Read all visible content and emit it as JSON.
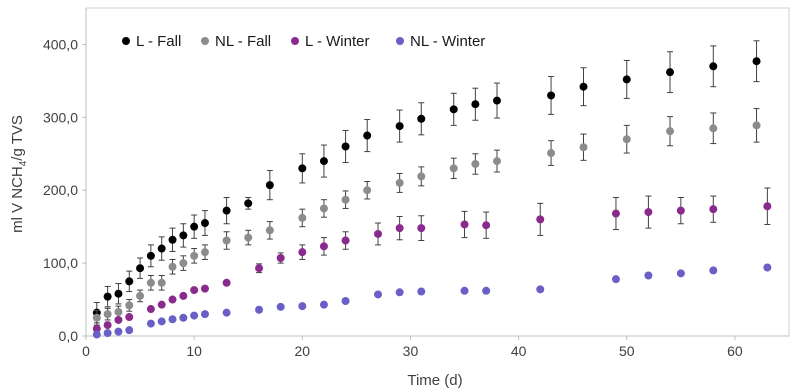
{
  "chart_data": {
    "type": "scatter",
    "title": "",
    "xlabel": "Time (d)",
    "ylabel_parts": [
      "ml V NCH",
      "4",
      "/g TVS"
    ],
    "xlim": [
      0,
      65
    ],
    "ylim": [
      0,
      450
    ],
    "x_ticks": [
      0,
      10,
      20,
      30,
      40,
      50,
      60
    ],
    "y_ticks": [
      0,
      100,
      200,
      300,
      400
    ],
    "y_tick_labels": [
      "0,0",
      "100,0",
      "200,0",
      "300,0",
      "400,0"
    ],
    "grid": false,
    "legend_position": "top-left",
    "series": [
      {
        "name": "L - Fall",
        "color": "#000000",
        "points": [
          {
            "x": 1,
            "y": 32,
            "err": 14
          },
          {
            "x": 2,
            "y": 54,
            "err": 14
          },
          {
            "x": 3,
            "y": 58,
            "err": 14
          },
          {
            "x": 4,
            "y": 75,
            "err": 14
          },
          {
            "x": 5,
            "y": 93,
            "err": 14
          },
          {
            "x": 6,
            "y": 110,
            "err": 15
          },
          {
            "x": 7,
            "y": 120,
            "err": 16
          },
          {
            "x": 8,
            "y": 132,
            "err": 16
          },
          {
            "x": 9,
            "y": 138,
            "err": 16
          },
          {
            "x": 10,
            "y": 150,
            "err": 16
          },
          {
            "x": 11,
            "y": 155,
            "err": 17
          },
          {
            "x": 13,
            "y": 172,
            "err": 18
          },
          {
            "x": 15,
            "y": 182,
            "err": 8
          },
          {
            "x": 17,
            "y": 207,
            "err": 20
          },
          {
            "x": 20,
            "y": 230,
            "err": 20
          },
          {
            "x": 22,
            "y": 240,
            "err": 22
          },
          {
            "x": 24,
            "y": 260,
            "err": 22
          },
          {
            "x": 26,
            "y": 275,
            "err": 22
          },
          {
            "x": 29,
            "y": 288,
            "err": 22
          },
          {
            "x": 31,
            "y": 298,
            "err": 22
          },
          {
            "x": 34,
            "y": 311,
            "err": 22
          },
          {
            "x": 36,
            "y": 318,
            "err": 22
          },
          {
            "x": 38,
            "y": 323,
            "err": 24
          },
          {
            "x": 43,
            "y": 330,
            "err": 26
          },
          {
            "x": 46,
            "y": 342,
            "err": 26
          },
          {
            "x": 50,
            "y": 352,
            "err": 26
          },
          {
            "x": 54,
            "y": 362,
            "err": 28
          },
          {
            "x": 58,
            "y": 370,
            "err": 28
          },
          {
            "x": 62,
            "y": 377,
            "err": 28
          }
        ]
      },
      {
        "name": "NL - Fall",
        "color": "#8c8c8c",
        "points": [
          {
            "x": 1,
            "y": 25,
            "err": 10
          },
          {
            "x": 2,
            "y": 30,
            "err": 8
          },
          {
            "x": 3,
            "y": 33,
            "err": 8
          },
          {
            "x": 4,
            "y": 42,
            "err": 8
          },
          {
            "x": 5,
            "y": 55,
            "err": 8
          },
          {
            "x": 6,
            "y": 73,
            "err": 10
          },
          {
            "x": 7,
            "y": 73,
            "err": 10
          },
          {
            "x": 8,
            "y": 95,
            "err": 10
          },
          {
            "x": 9,
            "y": 100,
            "err": 10
          },
          {
            "x": 10,
            "y": 110,
            "err": 10
          },
          {
            "x": 11,
            "y": 115,
            "err": 10
          },
          {
            "x": 13,
            "y": 131,
            "err": 12
          },
          {
            "x": 15,
            "y": 135,
            "err": 10
          },
          {
            "x": 17,
            "y": 145,
            "err": 12
          },
          {
            "x": 20,
            "y": 162,
            "err": 12
          },
          {
            "x": 22,
            "y": 175,
            "err": 12
          },
          {
            "x": 24,
            "y": 187,
            "err": 12
          },
          {
            "x": 26,
            "y": 200,
            "err": 12
          },
          {
            "x": 29,
            "y": 210,
            "err": 13
          },
          {
            "x": 31,
            "y": 219,
            "err": 13
          },
          {
            "x": 34,
            "y": 230,
            "err": 14
          },
          {
            "x": 36,
            "y": 236,
            "err": 14
          },
          {
            "x": 38,
            "y": 240,
            "err": 15
          },
          {
            "x": 43,
            "y": 251,
            "err": 17
          },
          {
            "x": 46,
            "y": 259,
            "err": 18
          },
          {
            "x": 50,
            "y": 270,
            "err": 19
          },
          {
            "x": 54,
            "y": 281,
            "err": 20
          },
          {
            "x": 58,
            "y": 285,
            "err": 21
          },
          {
            "x": 62,
            "y": 289,
            "err": 23
          }
        ]
      },
      {
        "name": "L - Winter",
        "color": "#8a2a8e",
        "points": [
          {
            "x": 1,
            "y": 10,
            "err": 0
          },
          {
            "x": 2,
            "y": 15,
            "err": 0
          },
          {
            "x": 3,
            "y": 22,
            "err": 0
          },
          {
            "x": 4,
            "y": 26,
            "err": 0
          },
          {
            "x": 6,
            "y": 37,
            "err": 0
          },
          {
            "x": 7,
            "y": 43,
            "err": 0
          },
          {
            "x": 8,
            "y": 50,
            "err": 0
          },
          {
            "x": 9,
            "y": 55,
            "err": 0
          },
          {
            "x": 10,
            "y": 63,
            "err": 0
          },
          {
            "x": 11,
            "y": 65,
            "err": 0
          },
          {
            "x": 13,
            "y": 73,
            "err": 0
          },
          {
            "x": 16,
            "y": 93,
            "err": 6
          },
          {
            "x": 18,
            "y": 107,
            "err": 7
          },
          {
            "x": 20,
            "y": 115,
            "err": 10
          },
          {
            "x": 22,
            "y": 123,
            "err": 12
          },
          {
            "x": 24,
            "y": 131,
            "err": 12
          },
          {
            "x": 27,
            "y": 140,
            "err": 15
          },
          {
            "x": 29,
            "y": 148,
            "err": 16
          },
          {
            "x": 31,
            "y": 148,
            "err": 17
          },
          {
            "x": 35,
            "y": 153,
            "err": 18
          },
          {
            "x": 37,
            "y": 152,
            "err": 18
          },
          {
            "x": 42,
            "y": 160,
            "err": 22
          },
          {
            "x": 49,
            "y": 168,
            "err": 22
          },
          {
            "x": 52,
            "y": 170,
            "err": 22
          },
          {
            "x": 55,
            "y": 172,
            "err": 18
          },
          {
            "x": 58,
            "y": 174,
            "err": 18
          },
          {
            "x": 63,
            "y": 178,
            "err": 25
          }
        ]
      },
      {
        "name": "NL - Winter",
        "color": "#6a5fc7",
        "points": [
          {
            "x": 1,
            "y": 2,
            "err": 0
          },
          {
            "x": 2,
            "y": 4,
            "err": 0
          },
          {
            "x": 3,
            "y": 6,
            "err": 0
          },
          {
            "x": 4,
            "y": 8,
            "err": 0
          },
          {
            "x": 6,
            "y": 17,
            "err": 0
          },
          {
            "x": 7,
            "y": 20,
            "err": 0
          },
          {
            "x": 8,
            "y": 23,
            "err": 0
          },
          {
            "x": 9,
            "y": 25,
            "err": 0
          },
          {
            "x": 10,
            "y": 28,
            "err": 0
          },
          {
            "x": 11,
            "y": 30,
            "err": 0
          },
          {
            "x": 13,
            "y": 32,
            "err": 0
          },
          {
            "x": 16,
            "y": 36,
            "err": 0
          },
          {
            "x": 18,
            "y": 40,
            "err": 0
          },
          {
            "x": 20,
            "y": 41,
            "err": 0
          },
          {
            "x": 22,
            "y": 43,
            "err": 0
          },
          {
            "x": 24,
            "y": 48,
            "err": 0
          },
          {
            "x": 27,
            "y": 57,
            "err": 0
          },
          {
            "x": 29,
            "y": 60,
            "err": 0
          },
          {
            "x": 31,
            "y": 61,
            "err": 0
          },
          {
            "x": 35,
            "y": 62,
            "err": 0
          },
          {
            "x": 37,
            "y": 62,
            "err": 0
          },
          {
            "x": 42,
            "y": 64,
            "err": 0
          },
          {
            "x": 49,
            "y": 78,
            "err": 0
          },
          {
            "x": 52,
            "y": 83,
            "err": 0
          },
          {
            "x": 55,
            "y": 86,
            "err": 0
          },
          {
            "x": 58,
            "y": 90,
            "err": 0
          },
          {
            "x": 63,
            "y": 94,
            "err": 0
          }
        ]
      }
    ]
  }
}
